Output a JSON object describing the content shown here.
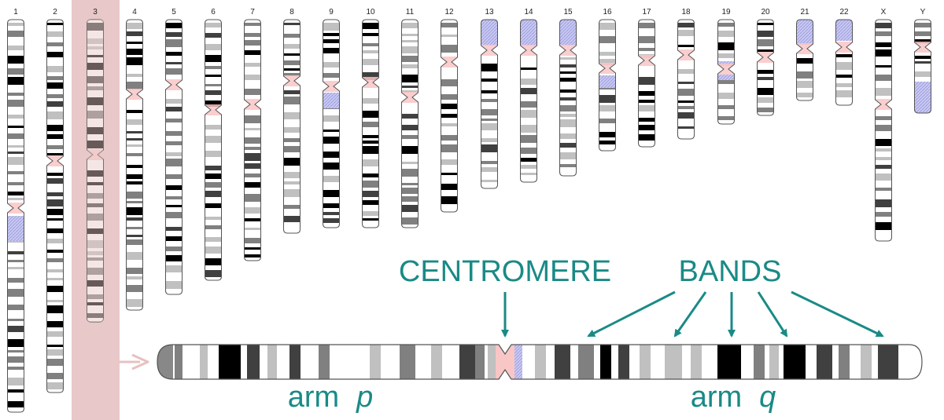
{
  "chromosome_labels": [
    "1",
    "2",
    "3",
    "4",
    "5",
    "6",
    "7",
    "8",
    "9",
    "10",
    "11",
    "12",
    "13",
    "14",
    "15",
    "16",
    "17",
    "18",
    "19",
    "20",
    "21",
    "22",
    "X",
    "Y"
  ],
  "highlighted_chromosome": "3",
  "annotations": {
    "centromere": "CENTROMERE",
    "bands": "BANDS",
    "arm_word": "arm",
    "arm_p_letter": "p",
    "arm_q_letter": "q"
  },
  "colors": {
    "accent": "#1a8a86",
    "highlight": "#e8c8c8",
    "centromere": "#f9c6c6",
    "heterochromatin": "#c8c8f2",
    "band_dark": "#000000",
    "band_mid": "#808080",
    "band_light": "#c0c0c0"
  }
}
